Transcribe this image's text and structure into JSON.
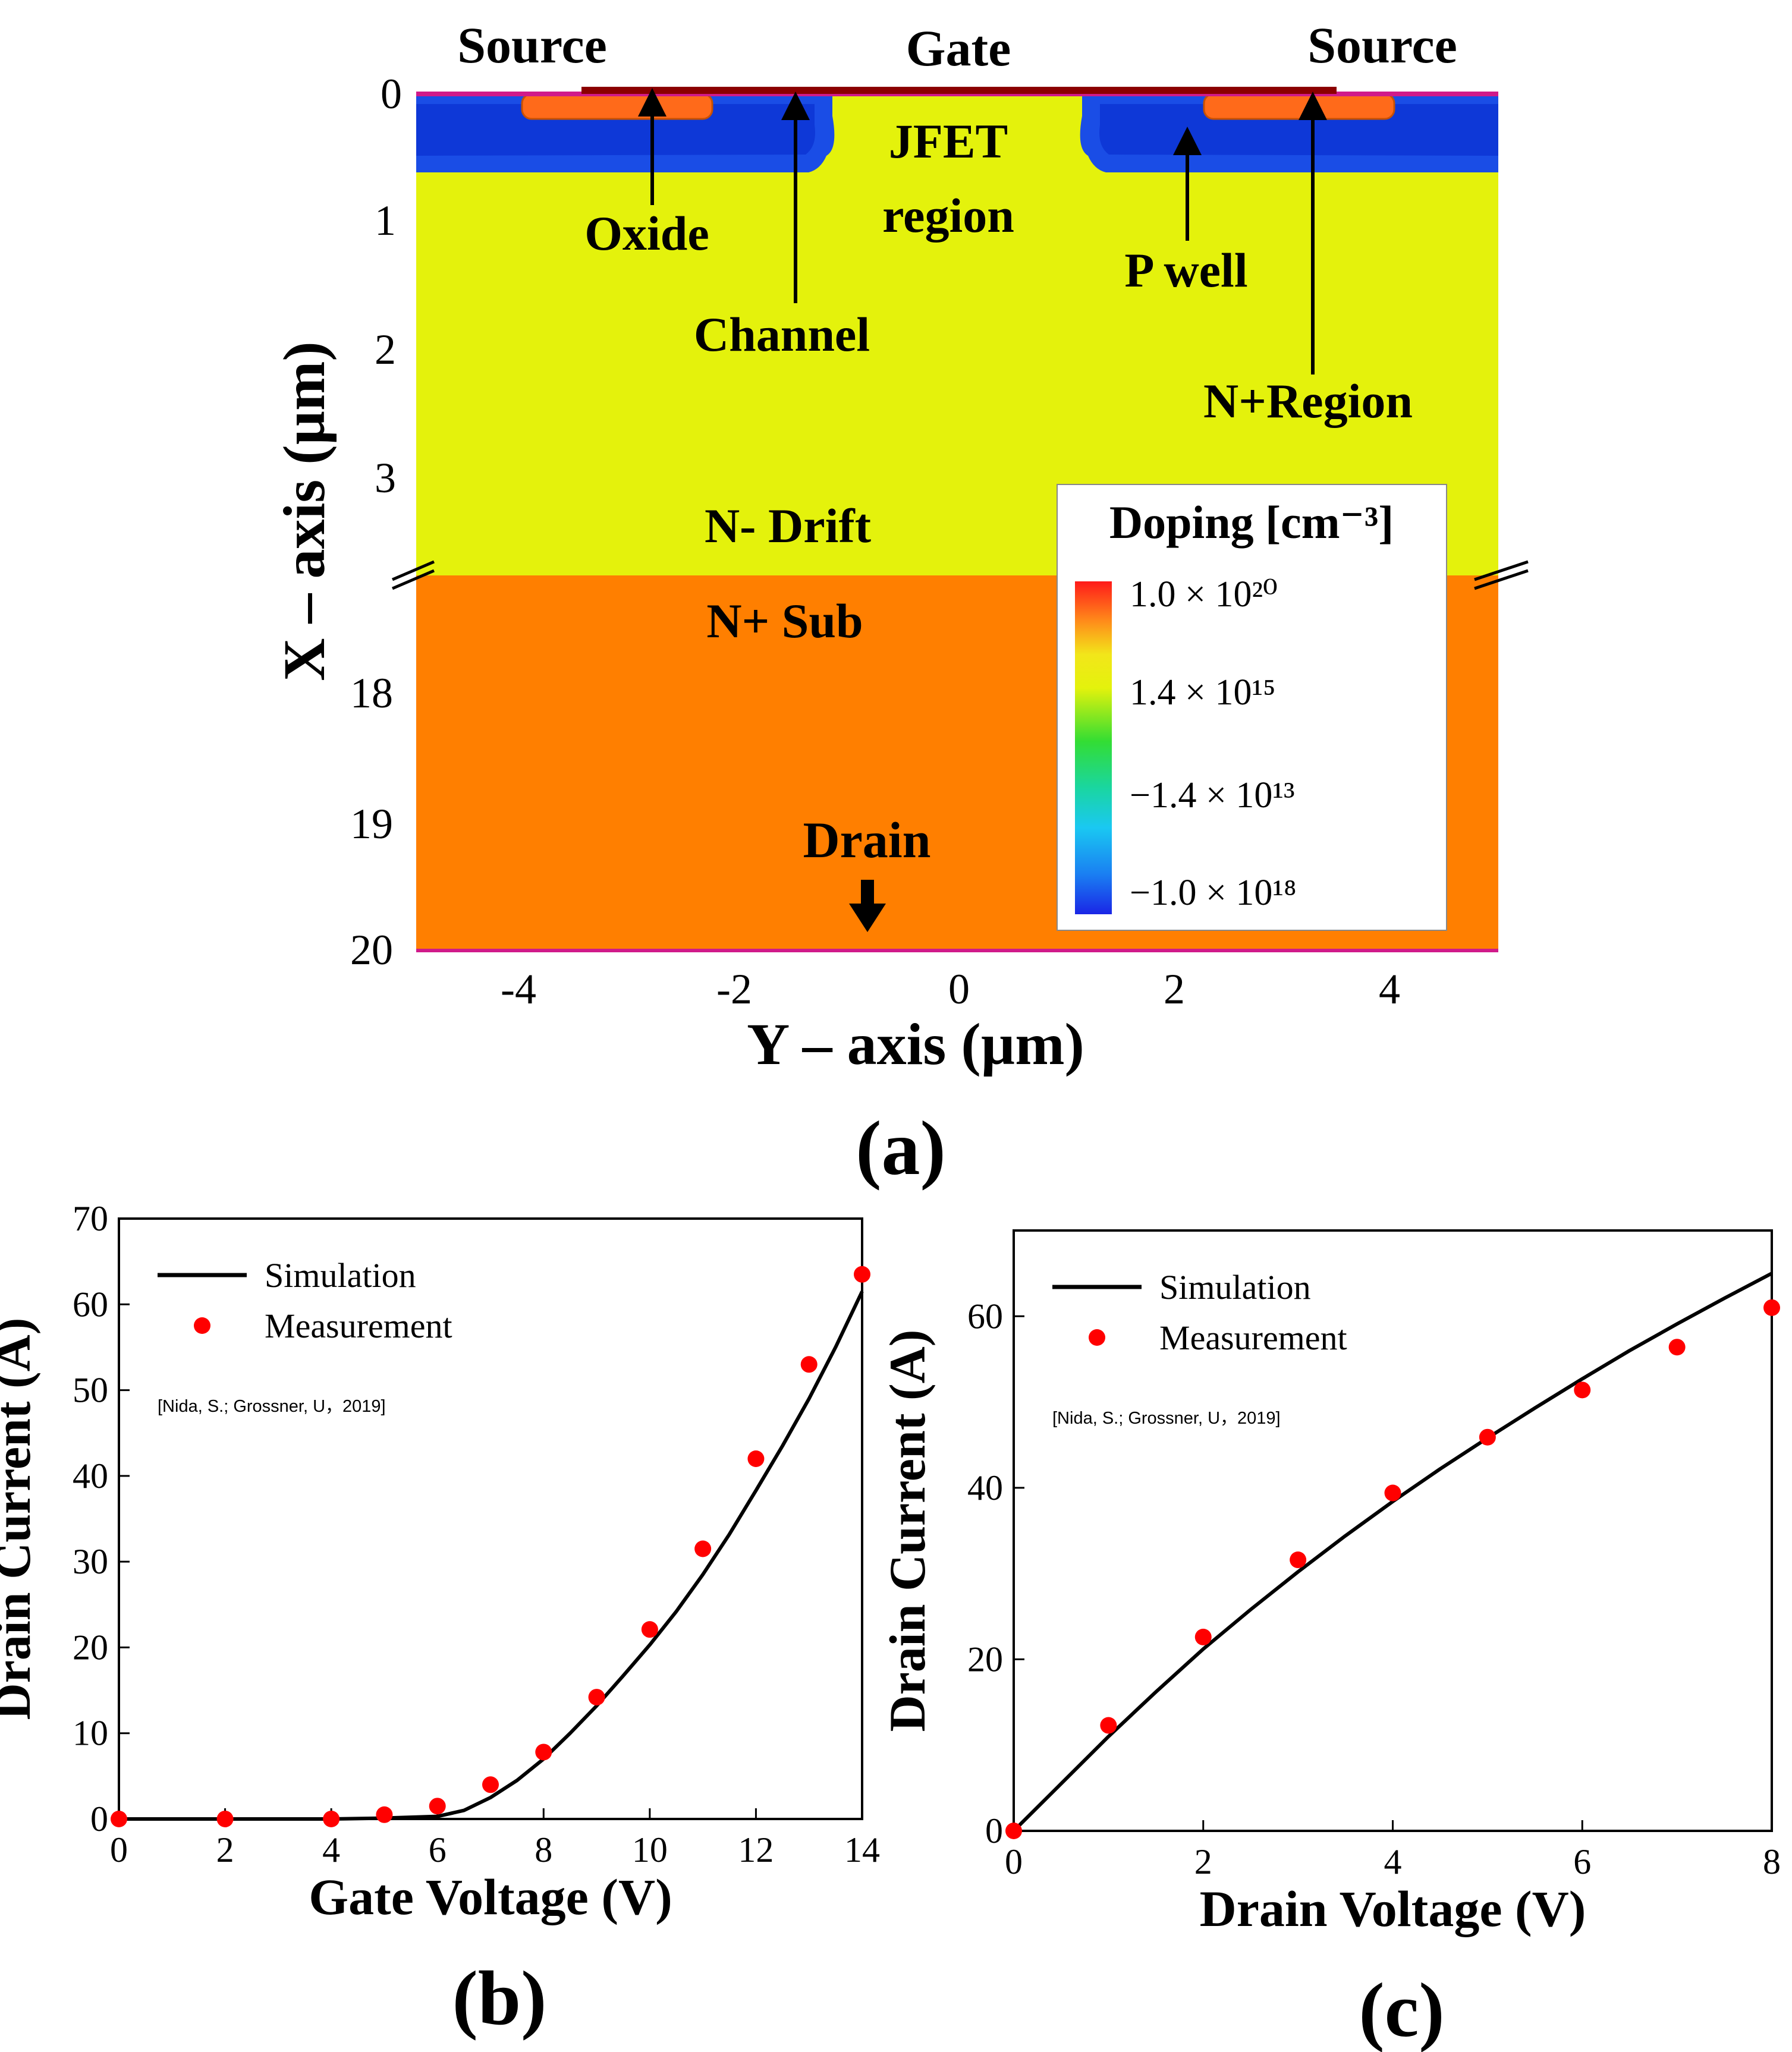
{
  "panel_a": {
    "panel_label": "(a)",
    "xlabel": "Y – axis (µm)",
    "ylabel": "X – axis (µm)",
    "x_ticks": [
      "-4",
      "-2",
      "0",
      "2",
      "4"
    ],
    "y_ticks_top": [
      "0",
      "1",
      "2",
      "3"
    ],
    "y_ticks_bottom": [
      "18",
      "19",
      "20"
    ],
    "labels": {
      "source_left": "Source",
      "gate": "Gate",
      "source_right": "Source",
      "jfet_line1": "JFET",
      "jfet_line2": "region",
      "oxide": "Oxide",
      "channel": "Channel",
      "p_well": "P well",
      "n_plus_region": "N+Region",
      "n_minus_drift": "N- Drift",
      "n_plus_sub": "N+ Sub",
      "drain": "Drain"
    },
    "legend": {
      "title": "Doping [cm⁻³]",
      "entries": [
        "1.0 × 10²⁰",
        "1.4 × 10¹⁵",
        "−1.4 × 10¹³",
        "−1.0 × 10¹⁸"
      ]
    },
    "colors": {
      "drift": "#e4f20c",
      "substrate": "#ff7f00",
      "p_well": "#1a4de6",
      "p_well_core": "#0a2fd0",
      "n_plus": "#ff6a1a",
      "gate_metal": "#8b0000",
      "oxide_line": "#d01a8a"
    }
  },
  "chart_data": [
    {
      "type": "line",
      "panel_label": "(b)",
      "xlabel": "Gate Voltage (V)",
      "ylabel": "Drain Current (A)",
      "xlim": [
        0,
        14
      ],
      "ylim": [
        0,
        70
      ],
      "x_ticks": [
        0,
        2,
        4,
        6,
        8,
        10,
        12,
        14
      ],
      "y_ticks": [
        0,
        10,
        20,
        30,
        40,
        50,
        60,
        70
      ],
      "legend_position": "top-left",
      "annotation": "[Nida, S.; Grossner, U，2019]",
      "series": [
        {
          "name": "Simulation",
          "style": "line",
          "color": "#000000",
          "x": [
            0,
            4,
            5,
            6,
            6.5,
            7,
            7.5,
            8,
            8.5,
            9,
            9.5,
            10,
            10.5,
            11,
            11.5,
            12,
            12.5,
            13,
            13.5,
            14
          ],
          "y": [
            0,
            0,
            0.1,
            0.3,
            1.0,
            2.5,
            4.5,
            7,
            10,
            13.2,
            16.7,
            20.3,
            24.2,
            28.5,
            33.2,
            38.3,
            43.5,
            49,
            55,
            61.5
          ]
        },
        {
          "name": "Measurement",
          "style": "scatter",
          "color": "#ff0000",
          "x": [
            0,
            2,
            4,
            5,
            6,
            7,
            8,
            9,
            10,
            11,
            12,
            13,
            14
          ],
          "y": [
            0,
            0,
            0,
            0.5,
            1.5,
            4,
            7.8,
            14.2,
            22.1,
            31.5,
            42,
            53,
            63.5
          ]
        }
      ]
    },
    {
      "type": "line",
      "panel_label": "(c)",
      "xlabel": "Drain Voltage (V)",
      "ylabel": "Drain Current (A)",
      "xlim": [
        0,
        8
      ],
      "ylim": [
        0,
        70
      ],
      "x_ticks": [
        0,
        2,
        4,
        6,
        8
      ],
      "y_ticks": [
        0,
        20,
        40,
        60
      ],
      "legend_position": "top-left",
      "annotation": "[Nida, S.; Grossner, U，2019]",
      "series": [
        {
          "name": "Simulation",
          "style": "line",
          "color": "#000000",
          "x": [
            0,
            0.5,
            1,
            1.5,
            2,
            2.5,
            3,
            3.5,
            4,
            4.5,
            5,
            5.5,
            6,
            6.5,
            7,
            7.5,
            8
          ],
          "y": [
            0,
            5.5,
            11,
            16.2,
            21.2,
            25.8,
            30.2,
            34.4,
            38.4,
            42.2,
            45.8,
            49.3,
            52.7,
            56,
            59.1,
            62.1,
            65
          ]
        },
        {
          "name": "Measurement",
          "style": "scatter",
          "color": "#ff0000",
          "x": [
            0,
            1,
            2,
            3,
            4,
            5,
            6,
            7,
            8
          ],
          "y": [
            0,
            12.3,
            22.6,
            31.6,
            39.4,
            45.9,
            51.4,
            56.4,
            61
          ]
        }
      ]
    }
  ]
}
